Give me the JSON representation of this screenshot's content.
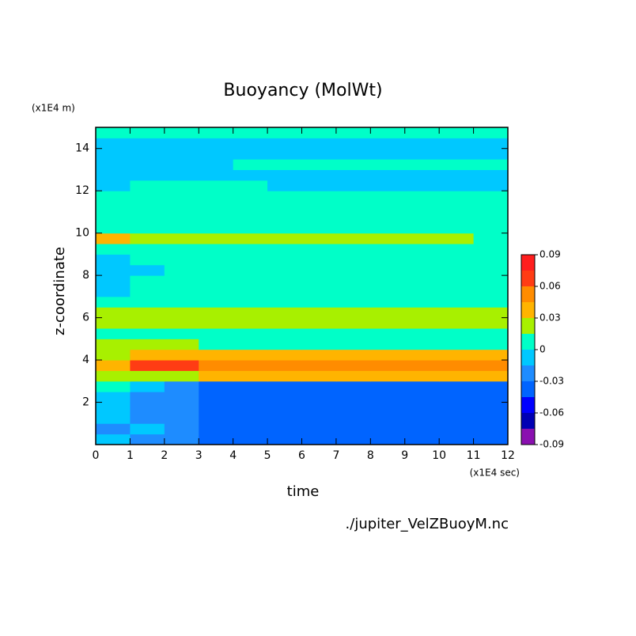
{
  "chart_data": {
    "type": "contour",
    "title": "Buoyancy (MolWt)",
    "x_label": "time",
    "y_label": "z-coordinate",
    "x_unit": "(x1E4 sec)",
    "y_unit": "(x1E4 m)",
    "source": "./jupiter_VelZBuoyM.nc",
    "xlim": [
      0,
      12
    ],
    "ylim": [
      0,
      15
    ],
    "xticks": [
      0,
      1,
      2,
      3,
      4,
      5,
      6,
      7,
      8,
      9,
      10,
      11,
      12
    ],
    "yticks": [
      2,
      4,
      6,
      8,
      10,
      12,
      14
    ],
    "x": [
      0.5,
      1.5,
      2.5,
      3.5,
      4.5,
      5.5,
      6.5,
      7.5,
      8.5,
      9.5,
      10.5,
      11.5
    ],
    "y": [
      0.25,
      0.75,
      1.25,
      1.75,
      2.25,
      2.75,
      3.25,
      3.75,
      4.25,
      4.75,
      5.25,
      5.75,
      6.25,
      6.75,
      7.25,
      7.75,
      8.25,
      8.75,
      9.25,
      9.75,
      10.25,
      10.75,
      11.25,
      11.75,
      12.25,
      12.75,
      13.25,
      13.75,
      14.25,
      14.75
    ],
    "z": [
      [
        -0.008,
        -0.022,
        -0.022,
        -0.038,
        -0.038,
        -0.038,
        -0.038,
        -0.038,
        -0.038,
        -0.038,
        -0.038,
        -0.038
      ],
      [
        -0.022,
        -0.008,
        -0.022,
        -0.038,
        -0.038,
        -0.038,
        -0.038,
        -0.038,
        -0.038,
        -0.038,
        -0.038,
        -0.038
      ],
      [
        -0.008,
        -0.022,
        -0.022,
        -0.038,
        -0.038,
        -0.038,
        -0.038,
        -0.038,
        -0.038,
        -0.038,
        -0.038,
        -0.038
      ],
      [
        -0.008,
        -0.022,
        -0.022,
        -0.038,
        -0.038,
        -0.038,
        -0.038,
        -0.038,
        -0.038,
        -0.038,
        -0.038,
        -0.038
      ],
      [
        -0.008,
        -0.022,
        -0.022,
        -0.038,
        -0.038,
        -0.038,
        -0.038,
        -0.038,
        -0.038,
        -0.038,
        -0.038,
        -0.038
      ],
      [
        0.008,
        -0.008,
        -0.022,
        -0.038,
        -0.038,
        -0.038,
        -0.038,
        -0.038,
        -0.038,
        -0.038,
        -0.038,
        -0.038
      ],
      [
        0.022,
        0.022,
        0.022,
        0.038,
        0.038,
        0.038,
        0.038,
        0.038,
        0.038,
        0.038,
        0.038,
        0.038
      ],
      [
        0.038,
        0.068,
        0.068,
        0.052,
        0.052,
        0.052,
        0.052,
        0.052,
        0.052,
        0.052,
        0.052,
        0.052
      ],
      [
        0.022,
        0.038,
        0.038,
        0.038,
        0.038,
        0.038,
        0.038,
        0.038,
        0.038,
        0.038,
        0.038,
        0.038
      ],
      [
        0.022,
        0.022,
        0.022,
        0.008,
        0.008,
        0.008,
        0.008,
        0.008,
        0.008,
        0.008,
        0.008,
        0.008
      ],
      [
        0.008,
        0.008,
        0.008,
        0.008,
        0.008,
        0.008,
        0.008,
        0.008,
        0.008,
        0.008,
        0.008,
        0.008
      ],
      [
        0.022,
        0.022,
        0.022,
        0.022,
        0.022,
        0.022,
        0.022,
        0.022,
        0.022,
        0.022,
        0.022,
        0.022
      ],
      [
        0.022,
        0.022,
        0.022,
        0.022,
        0.022,
        0.022,
        0.022,
        0.022,
        0.022,
        0.022,
        0.022,
        0.022
      ],
      [
        0.008,
        0.008,
        0.008,
        0.008,
        0.008,
        0.008,
        0.008,
        0.008,
        0.008,
        0.008,
        0.008,
        0.008
      ],
      [
        -0.008,
        0.008,
        0.008,
        0.008,
        0.008,
        0.008,
        0.008,
        0.008,
        0.008,
        0.008,
        0.008,
        0.008
      ],
      [
        -0.008,
        0.008,
        0.008,
        0.008,
        0.008,
        0.008,
        0.008,
        0.008,
        0.008,
        0.008,
        0.008,
        0.008
      ],
      [
        -0.008,
        -0.008,
        0.008,
        0.008,
        0.008,
        0.008,
        0.008,
        0.008,
        0.008,
        0.008,
        0.008,
        0.008
      ],
      [
        -0.008,
        0.008,
        0.008,
        0.008,
        0.008,
        0.008,
        0.008,
        0.008,
        0.008,
        0.008,
        0.008,
        0.008
      ],
      [
        0.008,
        0.008,
        0.008,
        0.008,
        0.008,
        0.008,
        0.008,
        0.008,
        0.008,
        0.008,
        0.008,
        0.008
      ],
      [
        0.038,
        0.022,
        0.022,
        0.022,
        0.022,
        0.022,
        0.022,
        0.022,
        0.022,
        0.022,
        0.022,
        0.008
      ],
      [
        0.008,
        0.008,
        0.008,
        0.008,
        0.008,
        0.008,
        0.008,
        0.008,
        0.008,
        0.008,
        0.008,
        0.008
      ],
      [
        0.008,
        0.008,
        0.008,
        0.008,
        0.008,
        0.008,
        0.008,
        0.008,
        0.008,
        0.008,
        0.008,
        0.008
      ],
      [
        0.008,
        0.008,
        0.008,
        0.008,
        0.008,
        0.008,
        0.008,
        0.008,
        0.008,
        0.008,
        0.008,
        0.008
      ],
      [
        0.008,
        0.008,
        0.008,
        0.008,
        0.008,
        0.008,
        0.008,
        0.008,
        0.008,
        0.008,
        0.008,
        0.008
      ],
      [
        -0.008,
        0.008,
        0.008,
        0.008,
        0.008,
        -0.008,
        -0.008,
        -0.008,
        -0.008,
        -0.008,
        -0.008,
        -0.008
      ],
      [
        -0.008,
        -0.008,
        -0.008,
        -0.008,
        -0.008,
        -0.008,
        -0.008,
        -0.008,
        -0.008,
        -0.008,
        -0.008,
        -0.008
      ],
      [
        -0.008,
        -0.008,
        -0.008,
        -0.008,
        0.008,
        0.008,
        0.008,
        0.008,
        0.008,
        0.008,
        0.008,
        0.008
      ],
      [
        -0.008,
        -0.008,
        -0.008,
        -0.008,
        -0.008,
        -0.008,
        -0.008,
        -0.008,
        -0.008,
        -0.008,
        -0.008,
        -0.008
      ],
      [
        -0.008,
        -0.008,
        -0.008,
        -0.008,
        -0.008,
        -0.008,
        -0.008,
        -0.008,
        -0.008,
        -0.008,
        -0.008,
        -0.008
      ],
      [
        0.008,
        0.008,
        0.008,
        0.008,
        0.008,
        0.008,
        0.008,
        0.008,
        0.008,
        0.008,
        0.008,
        0.008
      ]
    ],
    "levels": [
      -0.09,
      -0.075,
      -0.06,
      -0.045,
      -0.03,
      -0.015,
      0,
      0.015,
      0.03,
      0.045,
      0.06,
      0.075,
      0.09
    ],
    "colors": [
      "#8a10b0",
      "#0000b4",
      "#0000ff",
      "#0064ff",
      "#1e8cff",
      "#00c8ff",
      "#00ffc8",
      "#a8f000",
      "#ffb400",
      "#ff8c00",
      "#ff3c14",
      "#ff1e1e",
      "#ffaaaa"
    ],
    "colorbar_ticks": [
      0.09,
      0.06,
      0.03,
      0,
      -0.03,
      -0.06,
      -0.09
    ]
  }
}
